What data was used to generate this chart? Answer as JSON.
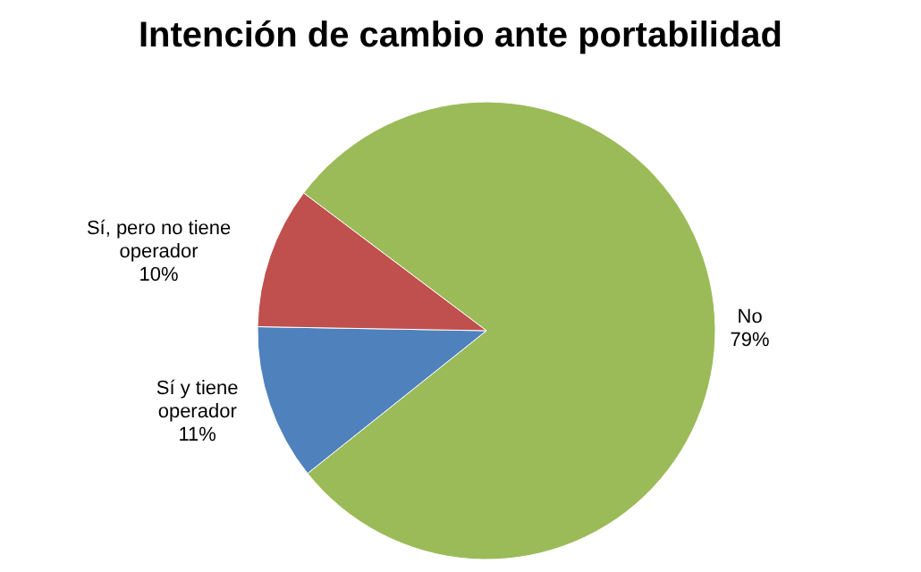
{
  "chart_data": {
    "type": "pie",
    "title": "Intención de cambio ante portabilidad",
    "categories": [
      "No",
      "Sí y tiene operador",
      "Sí, pero no tiene operador"
    ],
    "values": [
      79,
      11,
      10
    ],
    "colors": [
      "#9bbb59",
      "#4f81bd",
      "#c0504d"
    ],
    "value_labels": [
      "79%",
      "11%",
      "10%"
    ]
  }
}
